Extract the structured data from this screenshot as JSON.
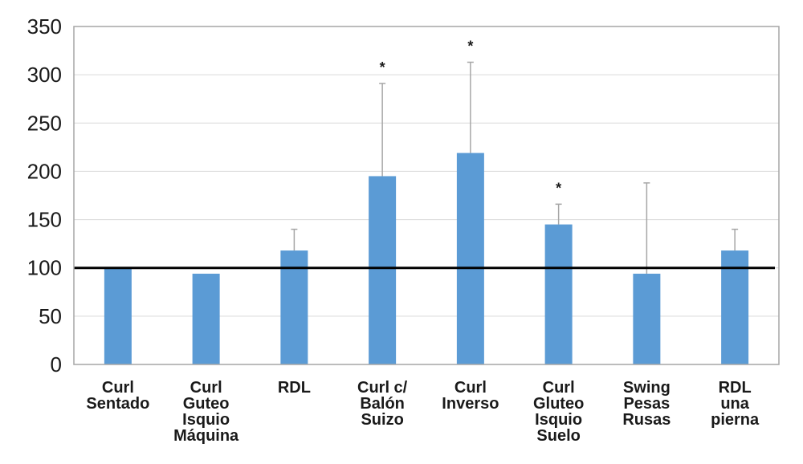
{
  "chart_data": {
    "type": "bar",
    "categories": [
      [
        "Curl",
        "Sentado"
      ],
      [
        "Curl",
        "Guteo",
        "Isquio",
        "Máquina"
      ],
      [
        "RDL"
      ],
      [
        "Curl c/",
        "Balón",
        "Suizo"
      ],
      [
        "Curl",
        "Inverso"
      ],
      [
        "Curl",
        "Gluteo",
        "Isquio",
        "Suelo"
      ],
      [
        "Swing",
        "Pesas",
        "Rusas"
      ],
      [
        "RDL",
        "una",
        "pierna"
      ]
    ],
    "values": [
      100,
      94,
      118,
      195,
      219,
      145,
      94,
      118
    ],
    "error_upper": [
      100,
      94,
      140,
      291,
      313,
      166,
      188,
      140
    ],
    "significance": [
      "",
      "",
      "",
      "*",
      "*",
      "*",
      "",
      ""
    ],
    "ylim": [
      0,
      350
    ],
    "yticks": [
      "0",
      "50",
      "100",
      "150",
      "200",
      "250",
      "300",
      "350"
    ],
    "reference_line": 100,
    "grid": true,
    "bar_color": "#5b9bd5",
    "error_color": "#a6a6a6",
    "grid_color": "#d9d9d9",
    "reference_color": "#000000",
    "title": "",
    "xlabel": "",
    "ylabel": ""
  }
}
